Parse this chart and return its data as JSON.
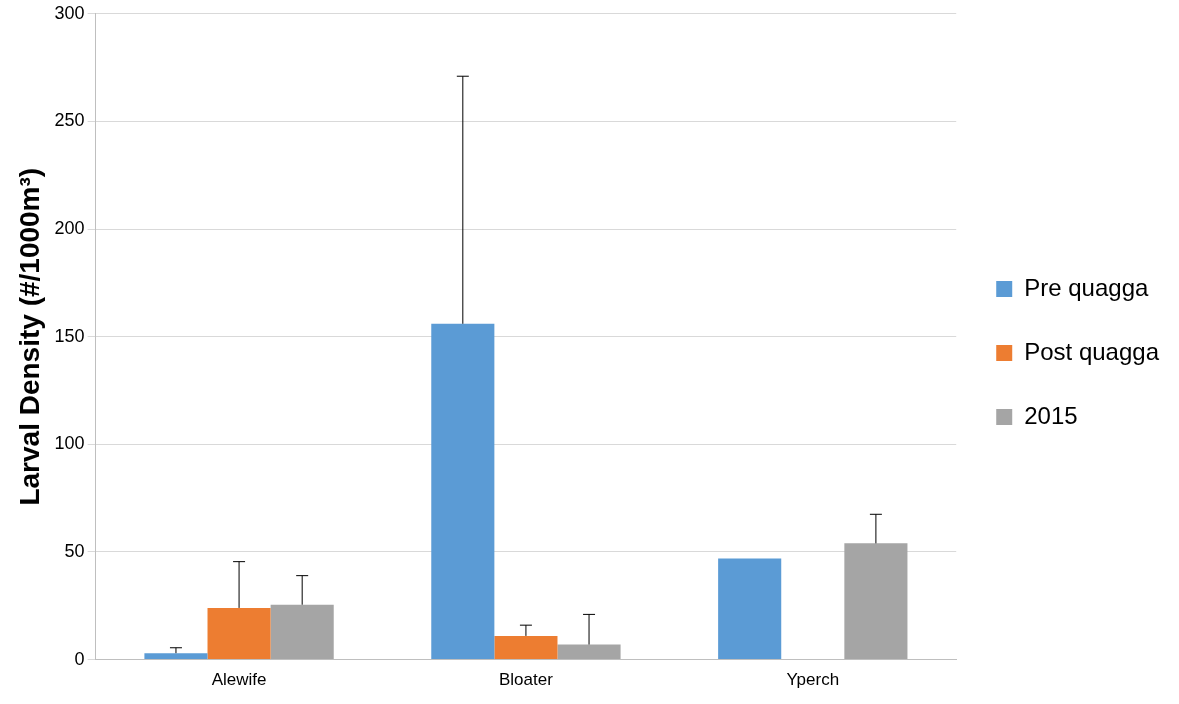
{
  "chart_data": {
    "type": "bar",
    "ylabel": "Larval Density (#/1000m³)",
    "categories": [
      "Alewife",
      "Bloater",
      "Yperch"
    ],
    "series": [
      {
        "name": "Pre quagga",
        "color": "#5b9bd5",
        "values": [
          3,
          156,
          47
        ],
        "errors": [
          [
            3,
            5.5
          ],
          [
            156,
            271
          ],
          null
        ]
      },
      {
        "name": "Post quagga",
        "color": "#ed7d31",
        "values": [
          24,
          11,
          null
        ],
        "errors": [
          [
            24,
            45.5
          ],
          [
            11,
            16
          ],
          null
        ]
      },
      {
        "name": "2015",
        "color": "#a5a5a5",
        "values": [
          25.5,
          7,
          54
        ],
        "errors": [
          [
            25.5,
            39
          ],
          [
            7,
            21
          ],
          [
            54,
            67.5
          ]
        ]
      }
    ],
    "ylim": [
      0,
      300
    ],
    "yticks": [
      0,
      50,
      100,
      150,
      200,
      250,
      300
    ],
    "grid": "y",
    "legend": "right"
  }
}
